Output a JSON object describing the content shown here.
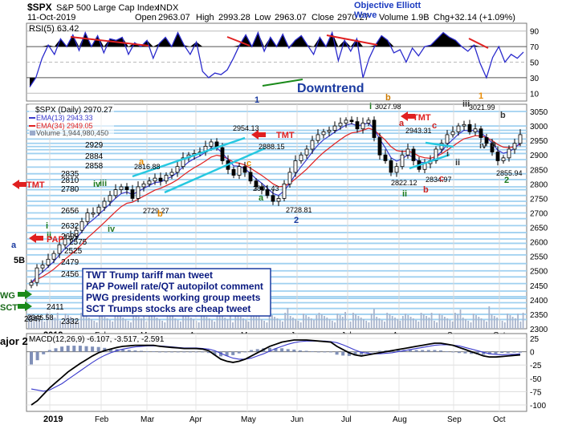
{
  "header": {
    "symbol": "$SPX",
    "name": "S&P 500 Large Cap Index",
    "exchange": "INDX",
    "date": "11-Oct-2019",
    "open_label": "Open",
    "open": "2963.07",
    "high_label": "High",
    "high": "2993.28",
    "low_label": "Low",
    "low": "2963.07",
    "close_label": "Close",
    "close": "2970.27",
    "volume_label": "Volume",
    "volume": "1.9B",
    "chg_label": "Chg",
    "chg": "+32.14 (+1.09%)",
    "brand_line1": "Objective Elliott",
    "brand_line2": "Wave"
  },
  "rsi": {
    "label": "RSI(5) 63.42",
    "ticks": [
      90,
      70,
      50,
      30,
      10
    ],
    "annotation": "Downtrend",
    "values": [
      18,
      30,
      55,
      72,
      60,
      80,
      70,
      85,
      65,
      88,
      70,
      84,
      62,
      80,
      78,
      82,
      60,
      75,
      70,
      78,
      55,
      74,
      82,
      70,
      88,
      72,
      60,
      76,
      38,
      30,
      36,
      34,
      40,
      55,
      72,
      85,
      70,
      88,
      64,
      82,
      70,
      86,
      68,
      78,
      84,
      72,
      60,
      82,
      70,
      88,
      52,
      78,
      64,
      80,
      30,
      55,
      72,
      84,
      78,
      62,
      66,
      50,
      68,
      58,
      70,
      72,
      80,
      88,
      82,
      78,
      70,
      64,
      72,
      48,
      30,
      56,
      70,
      50,
      60,
      55,
      63
    ]
  },
  "price_panel": {
    "legend": {
      "title": "$SPX (Daily) 2970.27",
      "ema13": "EMA(13) 2943.33",
      "ema34": "EMA(34) 2949.05",
      "volume": "Volume 1,944,980,450"
    },
    "ticks": [
      3050,
      3000,
      2950,
      2900,
      2850,
      2800,
      2750,
      2700,
      2650,
      2600,
      2550,
      2500,
      2450,
      2400,
      2350,
      2300
    ],
    "support_levels": [
      3050,
      3000,
      2985,
      2975,
      2955,
      2940,
      2929,
      2918,
      2905,
      2884,
      2858,
      2835,
      2815,
      2790,
      2780,
      2760,
      2740,
      2725,
      2700,
      2680,
      2656,
      2632,
      2610,
      2595,
      2575,
      2555,
      2525,
      2500,
      2479,
      2456,
      2430,
      2411,
      2405,
      2390,
      2370,
      2350,
      2332
    ],
    "level_labels": [
      {
        "text": "2929"
      },
      {
        "text": "2884"
      },
      {
        "text": "2858"
      },
      {
        "text": "2835"
      },
      {
        "text": "2810"
      },
      {
        "text": "2780"
      },
      {
        "text": "2656"
      },
      {
        "text": "2632"
      },
      {
        "text": "2609"
      },
      {
        "text": "2575"
      },
      {
        "text": "2525"
      },
      {
        "text": "2479"
      },
      {
        "text": "2456"
      },
      {
        "text": "2411"
      },
      {
        "text": "2347"
      },
      {
        "text": "2332"
      }
    ],
    "price_labels": [
      {
        "text": "2954.13"
      },
      {
        "text": "2816.88"
      },
      {
        "text": "2729.27"
      },
      {
        "text": "2801.43"
      },
      {
        "text": "2728.81"
      },
      {
        "text": "3027.98"
      },
      {
        "text": "2943.31"
      },
      {
        "text": "2822.12"
      },
      {
        "text": "2834.97"
      },
      {
        "text": "3021.99"
      },
      {
        "text": "2855.94"
      },
      {
        "text": "2346.58"
      },
      {
        "text": "2888.15"
      }
    ],
    "wave_labels": [
      {
        "text": "a",
        "color": "#1a3aa0"
      },
      {
        "text": "iii",
        "color": "#2a7a2a"
      },
      {
        "text": "iv",
        "color": "#2a7a2a"
      },
      {
        "text": "a",
        "color": "#e88a00"
      },
      {
        "text": "b",
        "color": "#e88a00"
      },
      {
        "text": "c",
        "color": "#e88a00"
      },
      {
        "text": "a",
        "color": "#1a7a1a"
      },
      {
        "text": "2",
        "color": "#1a3aa0"
      },
      {
        "text": "1",
        "color": "#1a3aa0"
      },
      {
        "text": "i",
        "color": "#1a7a1a"
      },
      {
        "text": "b",
        "color": "#cc7a00"
      },
      {
        "text": "a",
        "color": "#cc2222"
      },
      {
        "text": "c",
        "color": "#cc2222"
      },
      {
        "text": "ii",
        "color": "#1a7a1a"
      },
      {
        "text": "b",
        "color": "#cc2222"
      },
      {
        "text": "c",
        "color": "#cc2222"
      },
      {
        "text": "i",
        "color": "#333333"
      },
      {
        "text": "ii",
        "color": "#333333"
      },
      {
        "text": "iii",
        "color": "#333333"
      },
      {
        "text": "iv",
        "color": "#333333"
      },
      {
        "text": "1",
        "color": "#e88a00"
      },
      {
        "text": "b",
        "color": "#333333"
      },
      {
        "text": "a",
        "color": "#333333"
      },
      {
        "text": "2",
        "color": "#1a7a1a"
      },
      {
        "text": "iv",
        "color": "#1a7a1a"
      },
      {
        "text": "i",
        "color": "#1a7a1a"
      },
      {
        "text": "ii",
        "color": "#1a7a1a"
      },
      {
        "text": "5B",
        "color": "#000000"
      }
    ],
    "arrow_labels": [
      {
        "text": "TMT"
      },
      {
        "text": "PAP"
      },
      {
        "text": "TMT"
      },
      {
        "text": "TMT"
      },
      {
        "text": "WG"
      },
      {
        "text": "SCT"
      }
    ],
    "notes": [
      "TWT Trump tariff man tweet",
      "PAP Powell rate/QT autopilot comment",
      "PWG presidents working group meets",
      "SCT Trumps stocks are cheap tweet"
    ]
  },
  "macd": {
    "label": "MACD(12,26,9) -6.107, -3.517, -2.591",
    "side_label": "ajor 2",
    "ticks": [
      25,
      0,
      -25,
      -50,
      -75,
      -100
    ],
    "macd_line": [
      -100,
      -92,
      -80,
      -68,
      -58,
      -48,
      -38,
      -30,
      -22,
      -15,
      -8,
      -2,
      2,
      5,
      8,
      10,
      11,
      12,
      12,
      12,
      12,
      10,
      9,
      8,
      7,
      6,
      6,
      6,
      5,
      2,
      -6,
      -14,
      -18,
      -20,
      -18,
      -14,
      -8,
      -2,
      4,
      10,
      14,
      18,
      20,
      22,
      22,
      22,
      21,
      20,
      19,
      18,
      10,
      4,
      -2,
      -6,
      -8,
      -6,
      -4,
      -2,
      0,
      2,
      4,
      6,
      8,
      10,
      12,
      14,
      16,
      16,
      14,
      12,
      8,
      4,
      0,
      -4,
      -8,
      -10,
      -10,
      -9,
      -8,
      -7,
      -6
    ],
    "signal_line": [
      -70,
      -72,
      -74,
      -72,
      -66,
      -60,
      -52,
      -44,
      -36,
      -28,
      -20,
      -13,
      -7,
      -2,
      2,
      5,
      7,
      9,
      10,
      11,
      11,
      11,
      10,
      9,
      8,
      7,
      7,
      7,
      6,
      5,
      2,
      -3,
      -8,
      -12,
      -14,
      -14,
      -12,
      -8,
      -4,
      1,
      6,
      10,
      14,
      17,
      19,
      20,
      20,
      20,
      20,
      19,
      17,
      13,
      8,
      3,
      -1,
      -3,
      -4,
      -4,
      -3,
      -2,
      0,
      2,
      4,
      6,
      8,
      10,
      12,
      13,
      13,
      12,
      11,
      8,
      5,
      2,
      -1,
      -4,
      -5,
      -6,
      -5,
      -5,
      -4
    ]
  },
  "x_axis": {
    "months": [
      "2019",
      "Feb",
      "Mar",
      "Apr",
      "May",
      "Jun",
      "Jul",
      "Aug",
      "Sep",
      "Oct"
    ]
  },
  "chart_data": {
    "type": "line",
    "title": "$SPX S&P 500 Large Cap Index - INDX (Daily)",
    "ylim": [
      2300,
      3075
    ],
    "series": [
      {
        "name": "$SPX (Daily) 2970.27",
        "values": [
          2460,
          2510,
          2520,
          2540,
          2560,
          2590,
          2610,
          2620,
          2640,
          2670,
          2700,
          2700,
          2720,
          2740,
          2760,
          2780,
          2790,
          2780,
          2750,
          2790,
          2800,
          2810,
          2820,
          2810,
          2830,
          2840,
          2860,
          2890,
          2900,
          2905,
          2910,
          2930,
          2945,
          2925,
          2880,
          2850,
          2830,
          2860,
          2840,
          2810,
          2790,
          2780,
          2760,
          2740,
          2750,
          2800,
          2840,
          2880,
          2900,
          2920,
          2950,
          2970,
          2980,
          2985,
          3000,
          3010,
          3020,
          3015,
          2990,
          3010,
          3020,
          2960,
          2900,
          2880,
          2840,
          2860,
          2900,
          2920,
          2880,
          2850,
          2870,
          2880,
          2920,
          2940,
          2970,
          2980,
          3000,
          3005,
          2980,
          2990,
          2960,
          2940,
          2910,
          2880,
          2890,
          2920,
          2940,
          2970
        ]
      },
      {
        "name": "EMA(13) 2943.33",
        "values": []
      },
      {
        "name": "EMA(34) 2949.05",
        "values": []
      }
    ],
    "months": [
      "2019",
      "Feb",
      "Mar",
      "Apr",
      "May",
      "Jun",
      "Jul",
      "Aug",
      "Sep",
      "Oct"
    ],
    "ylabel": "",
    "xlabel": "",
    "grid": true
  }
}
